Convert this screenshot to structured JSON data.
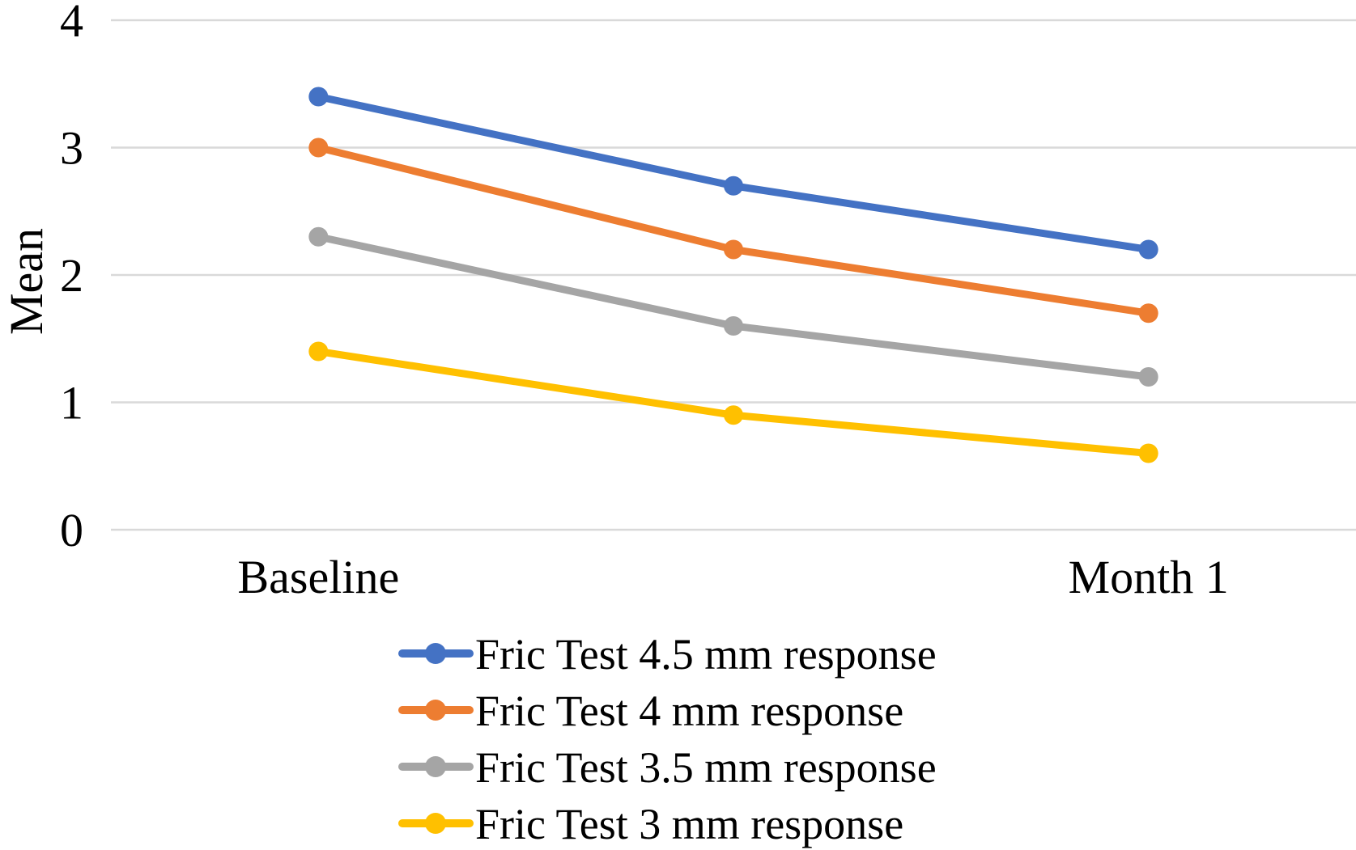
{
  "chart_data": {
    "type": "line",
    "title": "",
    "xlabel": "",
    "ylabel": "Mean",
    "categories": [
      "Baseline",
      "",
      "Month 1"
    ],
    "yticks": [
      0,
      1,
      2,
      3,
      4
    ],
    "ylim": [
      0,
      4
    ],
    "grid": "horizontal-only",
    "gridline_color": "#D9D9D9",
    "text_color": "#000000",
    "marker": "circle",
    "legend_position": "bottom",
    "series": [
      {
        "name": "Fric Test 4.5 mm response",
        "color": "#4472C4",
        "values": [
          3.4,
          2.7,
          2.2
        ]
      },
      {
        "name": "Fric Test 4 mm response",
        "color": "#ED7D31",
        "values": [
          3.0,
          2.2,
          1.7
        ]
      },
      {
        "name": "Fric Test 3.5 mm response",
        "color": "#A5A5A5",
        "values": [
          2.3,
          1.6,
          1.2
        ]
      },
      {
        "name": "Fric Test 3 mm response",
        "color": "#FFC000",
        "values": [
          1.4,
          0.9,
          0.6
        ]
      }
    ]
  }
}
